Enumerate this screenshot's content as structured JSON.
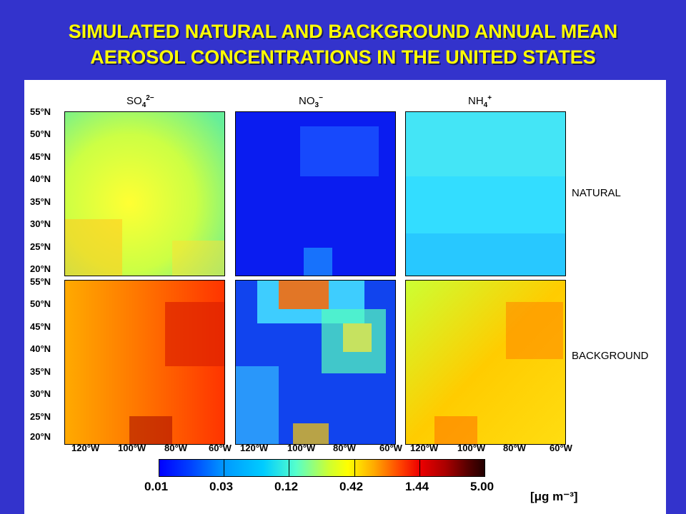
{
  "title": {
    "line1": "SIMULATED NATURAL AND BACKGROUND ANNUAL MEAN",
    "line2": "AEROSOL CONCENTRATIONS IN THE UNITED STATES"
  },
  "columns": [
    {
      "base": "SO",
      "sub": "4",
      "sup": "2−"
    },
    {
      "base": "NO",
      "sub": "3",
      "sup": "−"
    },
    {
      "base": "NH",
      "sub": "4",
      "sup": "+"
    }
  ],
  "rows": [
    "NATURAL",
    "BACKGROUND"
  ],
  "lat_labels": [
    "55°N",
    "50°N",
    "45°N",
    "40°N",
    "35°N",
    "30°N",
    "25°N",
    "20°N"
  ],
  "lon_labels": [
    "120°W",
    "100°W",
    "80°W",
    "60°W"
  ],
  "colorbar": {
    "labels": [
      "0.01",
      "0.03",
      "0.12",
      "0.42",
      "1.44",
      "5.00"
    ],
    "units": "[μg m⁻³]"
  },
  "chart_data": {
    "type": "heatmap",
    "title": "SIMULATED NATURAL AND BACKGROUND ANNUAL MEAN AEROSOL CONCENTRATIONS IN THE UNITED STATES",
    "panels": [
      {
        "species": "SO4 2-",
        "scenario": "NATURAL",
        "dominant_level": "0.12-0.42"
      },
      {
        "species": "NO3 -",
        "scenario": "NATURAL",
        "dominant_level": "0.01"
      },
      {
        "species": "NH4 +",
        "scenario": "NATURAL",
        "dominant_level": "0.03-0.12"
      },
      {
        "species": "SO4 2-",
        "scenario": "BACKGROUND",
        "dominant_level": "0.42-1.44"
      },
      {
        "species": "NO3 -",
        "scenario": "BACKGROUND",
        "dominant_level": "0.01-1.44"
      },
      {
        "species": "NH4 +",
        "scenario": "BACKGROUND",
        "dominant_level": "0.12-0.42"
      }
    ],
    "lat_range": [
      "20°N",
      "55°N"
    ],
    "lon_range": [
      "120°W",
      "60°W"
    ],
    "colorscale": [
      "0.01",
      "0.03",
      "0.12",
      "0.42",
      "1.44",
      "5.00"
    ]
  },
  "colors": {
    "background": "#3333cc",
    "title": "#ffff00"
  }
}
